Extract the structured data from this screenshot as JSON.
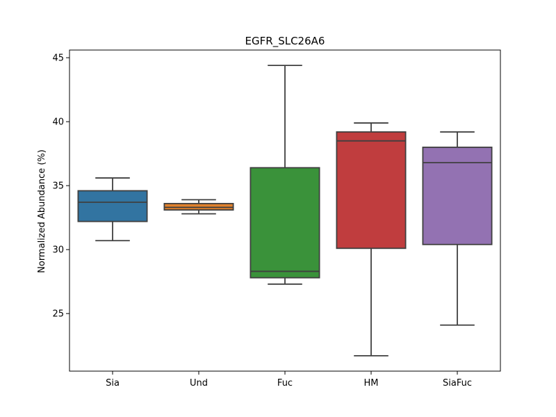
{
  "chart_data": {
    "type": "box",
    "title": "EGFR_SLC26A6",
    "xlabel": "",
    "ylabel": "Normalized Abundance (%)",
    "ylim": [
      20.5,
      45.6
    ],
    "yticks": [
      25,
      30,
      35,
      40,
      45
    ],
    "categories": [
      "Sia",
      "Und",
      "Fuc",
      "HM",
      "SiaFuc"
    ],
    "boxes": [
      {
        "name": "Sia",
        "whisker_low": 30.7,
        "q1": 32.2,
        "median": 33.7,
        "q3": 34.6,
        "whisker_high": 35.6,
        "color": "#3274a1"
      },
      {
        "name": "Und",
        "whisker_low": 32.8,
        "q1": 33.1,
        "median": 33.3,
        "q3": 33.6,
        "whisker_high": 33.9,
        "color": "#e1812c"
      },
      {
        "name": "Fuc",
        "whisker_low": 27.3,
        "q1": 27.8,
        "median": 28.3,
        "q3": 36.4,
        "whisker_high": 44.4,
        "color": "#3a923a"
      },
      {
        "name": "HM",
        "whisker_low": 21.7,
        "q1": 30.1,
        "median": 38.5,
        "q3": 39.2,
        "whisker_high": 39.9,
        "color": "#c03d3e"
      },
      {
        "name": "SiaFuc",
        "whisker_low": 24.1,
        "q1": 30.4,
        "median": 36.8,
        "q3": 38.0,
        "whisker_high": 39.2,
        "color": "#9372b2"
      }
    ]
  }
}
